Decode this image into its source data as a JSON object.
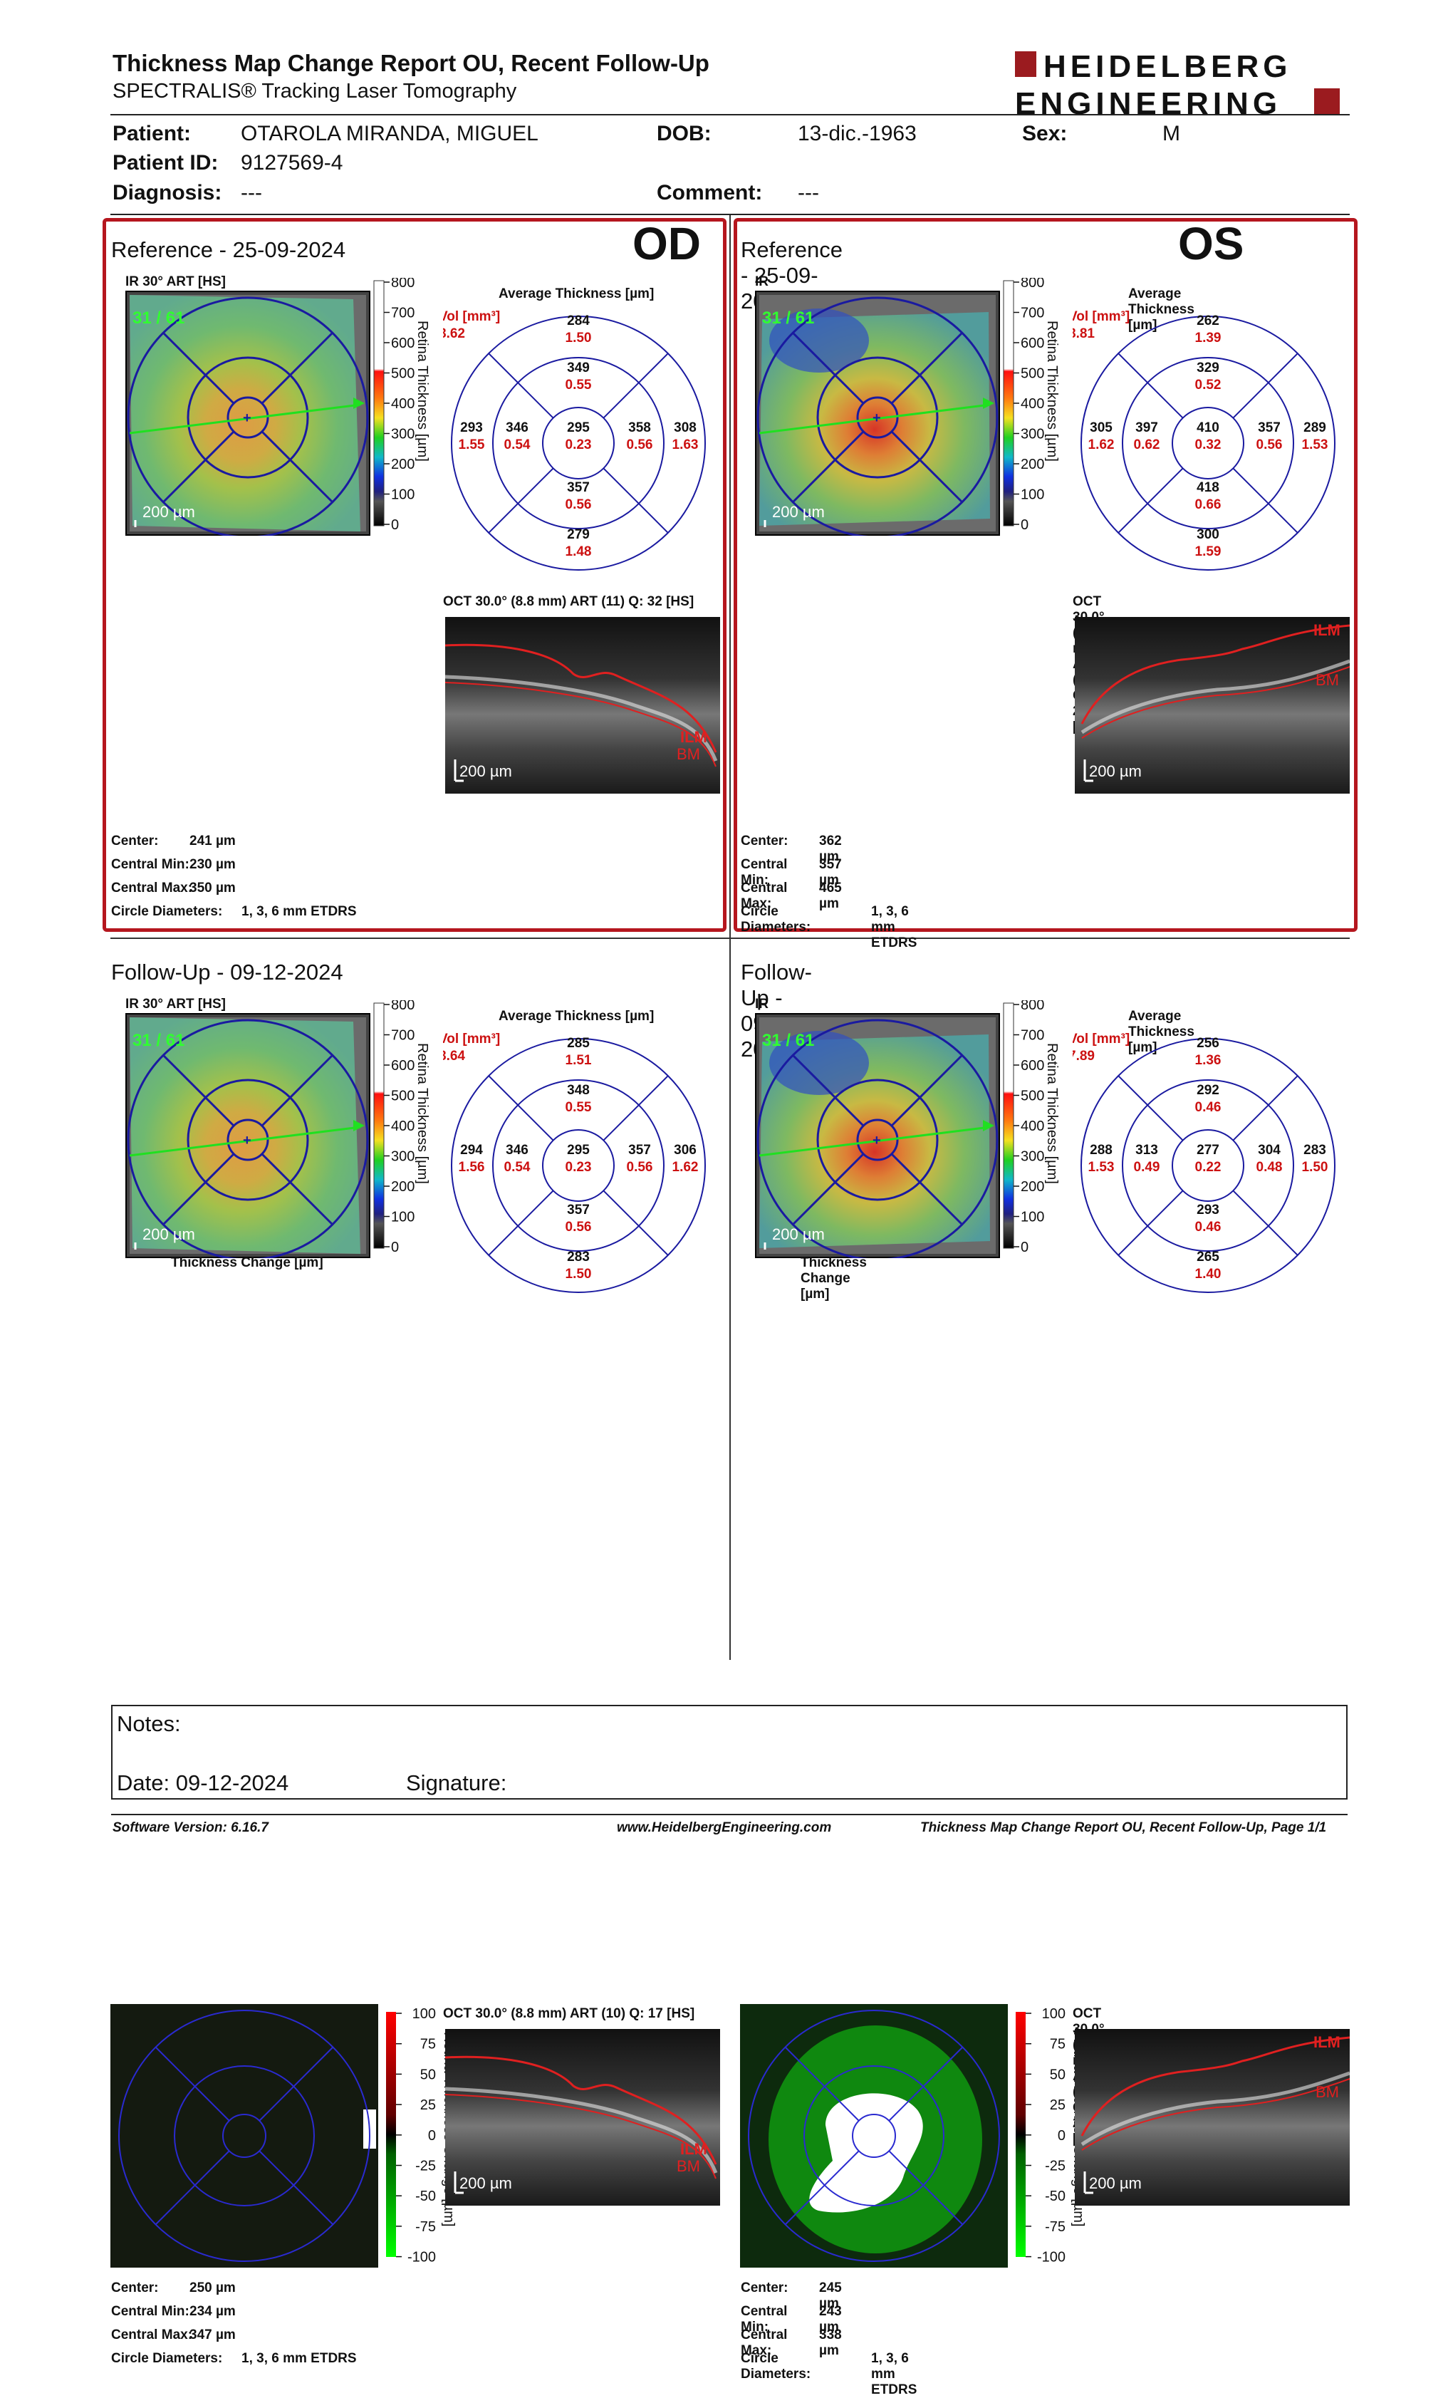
{
  "header": {
    "title": "Thickness Map Change Report OU, Recent Follow-Up",
    "subtitle": "SPECTRALIS® Tracking Laser Tomography",
    "logo_line1": "HEIDELBERG",
    "logo_line2": "ENGINEERING"
  },
  "patient": {
    "patient_label": "Patient:",
    "patient_value": "OTAROLA MIRANDA, MIGUEL",
    "dob_label": "DOB:",
    "dob_value": "13-dic.-1963",
    "sex_label": "Sex:",
    "sex_value": "M",
    "id_label": "Patient ID:",
    "id_value": "9127569-4",
    "diagnosis_label": "Diagnosis:",
    "diagnosis_value": "---",
    "comment_label": "Comment:",
    "comment_value": "---"
  },
  "labels": {
    "ir": "IR 30° ART [HS]",
    "avg_thickness": "Average Thickness [µm]",
    "vol": "Vol [mm³]",
    "retina_thickness": "Retina Thickness [µm]",
    "retina_thickness_change": "Retina Thickness Change [µm]",
    "thickness_change": "Thickness Change [µm]",
    "scale_200": "200 µm",
    "frame_counter": "31 / 61",
    "center": "Center:",
    "central_min": "Central Min:",
    "central_max": "Central Max:",
    "circle_diameters": "Circle Diameters:",
    "circle_value": "1, 3, 6 mm ETDRS",
    "ilm": "ILM",
    "bm": "BM"
  },
  "scale_ticks": [
    "800",
    "700",
    "600",
    "500",
    "400",
    "300",
    "200",
    "100",
    "0"
  ],
  "change_ticks": [
    "100",
    "75",
    "50",
    "25",
    "0",
    "-25",
    "-50",
    "-75",
    "-100"
  ],
  "panels": {
    "od_ref": {
      "eye": "OD",
      "title": "Reference - 25-09-2024",
      "vol": "8.62",
      "oct": "OCT 30.0° (8.8 mm) ART (11) Q: 32 [HS]",
      "center": "241 µm",
      "cmin": "230 µm",
      "cmax": "350 µm",
      "grid": {
        "outer_sup": [
          "284",
          "1.50"
        ],
        "inner_sup": [
          "349",
          "0.55"
        ],
        "outer_left": [
          "293",
          "1.55"
        ],
        "inner_left": [
          "346",
          "0.54"
        ],
        "center": [
          "295",
          "0.23"
        ],
        "inner_right": [
          "358",
          "0.56"
        ],
        "outer_right": [
          "308",
          "1.63"
        ],
        "inner_inf": [
          "357",
          "0.56"
        ],
        "outer_inf": [
          "279",
          "1.48"
        ]
      }
    },
    "os_ref": {
      "eye": "OS",
      "title": "Reference - 25-09-2024",
      "vol": "8.81",
      "oct": "OCT 30.0° (8.8 mm) ART (11) Q: 27 [HS]",
      "center": "362 µm",
      "cmin": "357 µm",
      "cmax": "465 µm",
      "grid": {
        "outer_sup": [
          "262",
          "1.39"
        ],
        "inner_sup": [
          "329",
          "0.52"
        ],
        "outer_left": [
          "305",
          "1.62"
        ],
        "inner_left": [
          "397",
          "0.62"
        ],
        "center": [
          "410",
          "0.32"
        ],
        "inner_right": [
          "357",
          "0.56"
        ],
        "outer_right": [
          "289",
          "1.53"
        ],
        "inner_inf": [
          "418",
          "0.66"
        ],
        "outer_inf": [
          "300",
          "1.59"
        ]
      }
    },
    "od_fu": {
      "title": "Follow-Up - 09-12-2024",
      "vol": "8.64",
      "oct": "OCT 30.0° (8.8 mm) ART (10) Q: 17 [HS]",
      "center": "250 µm",
      "cmin": "234 µm",
      "cmax": "347 µm",
      "grid": {
        "outer_sup": [
          "285",
          "1.51"
        ],
        "inner_sup": [
          "348",
          "0.55"
        ],
        "outer_left": [
          "294",
          "1.56"
        ],
        "inner_left": [
          "346",
          "0.54"
        ],
        "center": [
          "295",
          "0.23"
        ],
        "inner_right": [
          "357",
          "0.56"
        ],
        "outer_right": [
          "306",
          "1.62"
        ],
        "inner_inf": [
          "357",
          "0.56"
        ],
        "outer_inf": [
          "283",
          "1.50"
        ]
      }
    },
    "os_fu": {
      "title": "Follow-Up - 09-12-2024",
      "vol": "7.89",
      "oct": "OCT 30.0° (8.8 mm) ART (7) Q: 22 [HS]",
      "center": "245 µm",
      "cmin": "243 µm",
      "cmax": "338 µm",
      "grid": {
        "outer_sup": [
          "256",
          "1.36"
        ],
        "inner_sup": [
          "292",
          "0.46"
        ],
        "outer_left": [
          "288",
          "1.53"
        ],
        "inner_left": [
          "313",
          "0.49"
        ],
        "center": [
          "277",
          "0.22"
        ],
        "inner_right": [
          "304",
          "0.48"
        ],
        "outer_right": [
          "283",
          "1.50"
        ],
        "inner_inf": [
          "293",
          "0.46"
        ],
        "outer_inf": [
          "265",
          "1.40"
        ]
      }
    }
  },
  "notes": {
    "notes_label": "Notes:",
    "date_label": "Date: 09-12-2024",
    "signature_label": "Signature:"
  },
  "footer": {
    "software": "Software Version: 6.16.7",
    "website": "www.HeidelbergEngineering.com",
    "page": "Thickness Map Change Report OU, Recent Follow-Up, Page 1/1"
  },
  "colors": {
    "frame": "#b5161e",
    "value_red": "#cc1111",
    "grid_blue": "#1a1aa0",
    "logo": "#9b1b1f"
  }
}
